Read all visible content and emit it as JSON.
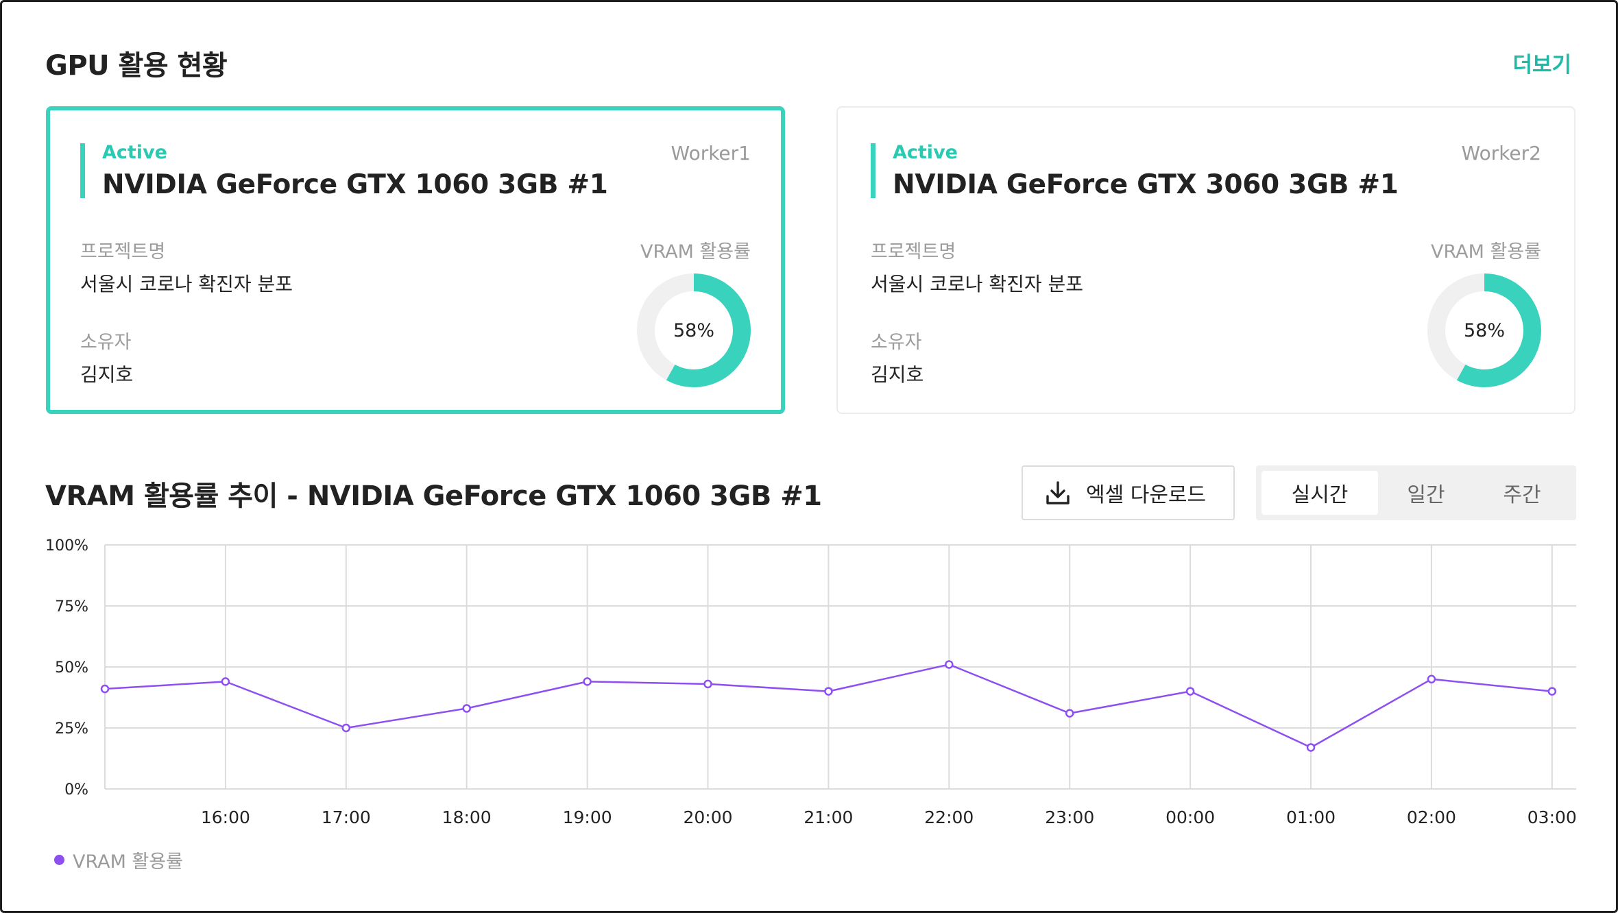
{
  "header": {
    "title": "GPU 활용 현황",
    "more_label": "더보기"
  },
  "colors": {
    "accent": "#38d2bd",
    "accent_text": "#2bc8b2",
    "line": "#8e4ff0",
    "donut_track": "#f0f0f0"
  },
  "cards": [
    {
      "status": "Active",
      "gpu_name": "NVIDIA GeForce GTX 1060 3GB #1",
      "worker": "Worker1",
      "project_label": "프로젝트명",
      "project_value": "서울시 코로나 확진자 분포",
      "owner_label": "소유자",
      "owner_value": "김지호",
      "vram_label": "VRAM 활용률",
      "vram_value": 0.58,
      "vram_text": "58%",
      "selected": true
    },
    {
      "status": "Active",
      "gpu_name": "NVIDIA GeForce GTX 3060 3GB #1",
      "worker": "Worker2",
      "project_label": "프로젝트명",
      "project_value": "서울시 코로나 확진자 분포",
      "owner_label": "소유자",
      "owner_value": "김지호",
      "vram_label": "VRAM 활용률",
      "vram_value": 0.58,
      "vram_text": "58%",
      "selected": false
    }
  ],
  "trend": {
    "title": "VRAM 활용률 추이 - NVIDIA GeForce GTX 1060 3GB #1",
    "excel_button_label": "엑셀 다운로드",
    "excel_icon": "download-icon",
    "period_tabs": [
      {
        "label": "실시간",
        "active": true
      },
      {
        "label": "일간",
        "active": false
      },
      {
        "label": "주간",
        "active": false
      }
    ],
    "legend_label": "VRAM 활용률"
  },
  "chart_data": {
    "type": "line",
    "ylim": [
      0,
      100
    ],
    "y_ticks": [
      0,
      25,
      50,
      75,
      100
    ],
    "y_tick_labels": [
      "0%",
      "25%",
      "50%",
      "75%",
      "100%"
    ],
    "x_tick_labels": [
      "16:00",
      "17:00",
      "18:00",
      "19:00",
      "20:00",
      "21:00",
      "22:00",
      "23:00",
      "00:00",
      "01:00",
      "02:00",
      "03:00"
    ],
    "xlim": [
      15,
      27.2
    ],
    "grid": true,
    "legend_position": "bottom-left",
    "series": [
      {
        "name": "VRAM 활용률",
        "x": [
          15.0,
          16.0,
          17.0,
          18.0,
          19.0,
          20.0,
          21.0,
          22.0,
          23.0,
          24.0,
          25.0,
          26.0,
          27.0
        ],
        "values": [
          41,
          44,
          25,
          33,
          44,
          43,
          40,
          51,
          31,
          40,
          17,
          45,
          40
        ]
      }
    ]
  }
}
